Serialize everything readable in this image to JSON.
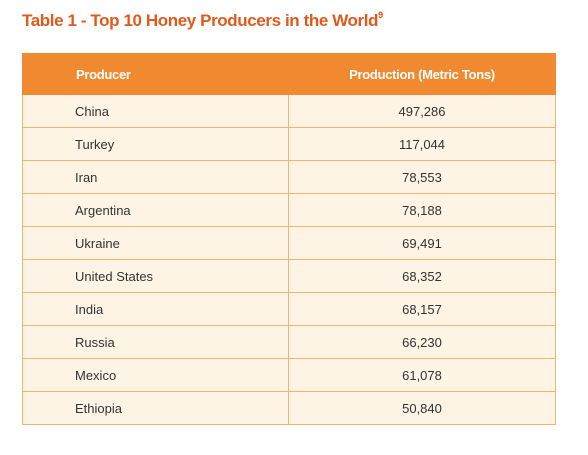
{
  "title": {
    "text": "Table 1 - Top 10 Honey Producers in the World",
    "footnote": "9"
  },
  "table": {
    "headers": [
      "Producer",
      "Production (Metric Tons)"
    ],
    "rows": [
      {
        "country": "China",
        "production": "497,286"
      },
      {
        "country": "Turkey",
        "production": "117,044"
      },
      {
        "country": "Iran",
        "production": "78,553"
      },
      {
        "country": "Argentina",
        "production": "78,188"
      },
      {
        "country": "Ukraine",
        "production": "69,491"
      },
      {
        "country": "United States",
        "production": "68,352"
      },
      {
        "country": "India",
        "production": "68,157"
      },
      {
        "country": "Russia",
        "production": "66,230"
      },
      {
        "country": "Mexico",
        "production": "61,078"
      },
      {
        "country": "Ethiopia",
        "production": "50,840"
      }
    ]
  },
  "colors": {
    "title": "#e05a1c",
    "header_bg": "#f0892f",
    "row_bg": "#fdf4e5",
    "border": "#f3b46d"
  }
}
